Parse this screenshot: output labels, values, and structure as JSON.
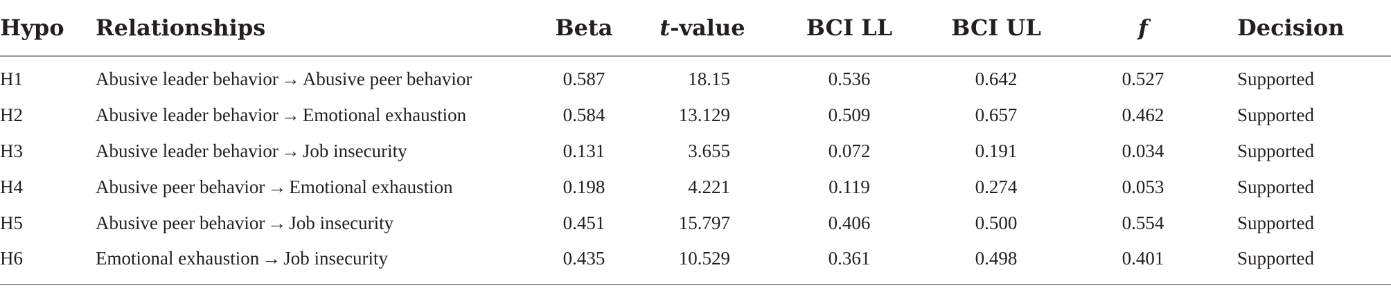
{
  "table": {
    "headers": {
      "hypo": "Hypo",
      "relationships": "Relationships",
      "beta": "Beta",
      "t_value_prefix": "t",
      "t_value_suffix": "-value",
      "bci_ll": "BCI LL",
      "bci_ul": "BCI UL",
      "f": "f",
      "decision": "Decision"
    },
    "rows": [
      {
        "hypo": "H1",
        "from": "Abusive leader behavior",
        "arrow": "→",
        "to": "Abusive peer behavior",
        "beta": "0.587",
        "t_value": "18.15",
        "bci_ll": "0.536",
        "bci_ul": "0.642",
        "f": "0.527",
        "decision": "Supported"
      },
      {
        "hypo": "H2",
        "from": "Abusive leader behavior",
        "arrow": "→",
        "to": "Emotional exhaustion",
        "beta": "0.584",
        "t_value": "13.129",
        "bci_ll": "0.509",
        "bci_ul": "0.657",
        "f": "0.462",
        "decision": "Supported"
      },
      {
        "hypo": "H3",
        "from": "Abusive leader behavior",
        "arrow": "→",
        "to": "Job insecurity",
        "beta": "0.131",
        "t_value": "3.655",
        "bci_ll": "0.072",
        "bci_ul": "0.191",
        "f": "0.034",
        "decision": "Supported"
      },
      {
        "hypo": "H4",
        "from": "Abusive peer behavior",
        "arrow": "→",
        "to": "Emotional exhaustion",
        "beta": "0.198",
        "t_value": "4.221",
        "bci_ll": "0.119",
        "bci_ul": "0.274",
        "f": "0.053",
        "decision": "Supported"
      },
      {
        "hypo": "H5",
        "from": "Abusive peer behavior",
        "arrow": "→",
        "to": "Job insecurity",
        "beta": "0.451",
        "t_value": "15.797",
        "bci_ll": "0.406",
        "bci_ul": "0.500",
        "f": "0.554",
        "decision": "Supported"
      },
      {
        "hypo": "H6",
        "from": "Emotional exhaustion",
        "arrow": "→",
        "to": "Job insecurity",
        "beta": "0.435",
        "t_value": "10.529",
        "bci_ll": "0.361",
        "bci_ul": "0.498",
        "f": "0.401",
        "decision": "Supported"
      }
    ]
  }
}
